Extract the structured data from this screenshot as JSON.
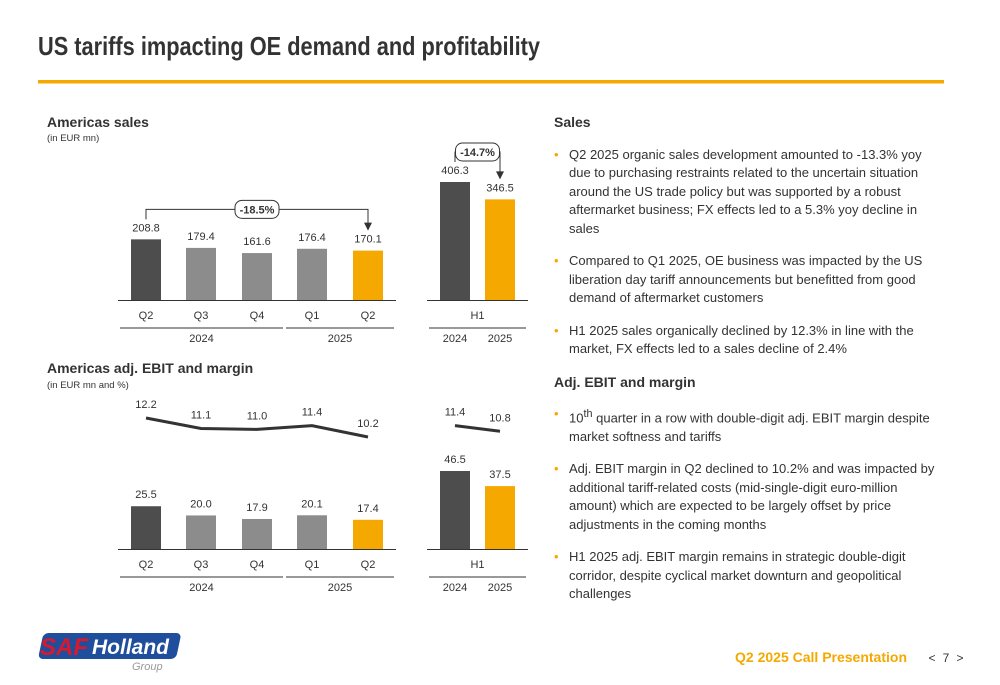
{
  "title": "US tariffs impacting OE demand and profitability",
  "chart_data": [
    {
      "type": "bar",
      "title": "Americas sales",
      "subtitle": "(in EUR mn)",
      "annotation": "-18.5%",
      "groups": [
        {
          "label": "2024",
          "categories": [
            "Q2",
            "Q3",
            "Q4"
          ],
          "values": [
            208.8,
            179.4,
            161.6
          ],
          "colors": [
            "#4d4d4d",
            "#8c8c8c",
            "#8c8c8c"
          ]
        },
        {
          "label": "2025",
          "categories": [
            "Q1",
            "Q2"
          ],
          "values": [
            176.4,
            170.1
          ],
          "colors": [
            "#8c8c8c",
            "#f5a800"
          ]
        }
      ]
    },
    {
      "type": "bar",
      "annotation": "-14.7%",
      "group_labels_first": true,
      "groups": [
        {
          "label": "H1",
          "categories": [
            "2024",
            "2025"
          ],
          "values": [
            406.3,
            346.5
          ],
          "colors": [
            "#4d4d4d",
            "#f5a800"
          ]
        }
      ]
    },
    {
      "type": "bar-line",
      "title": "Americas adj. EBIT and margin",
      "subtitle": "(in EUR mn and %)",
      "groups": [
        {
          "label": "2024",
          "categories": [
            "Q2",
            "Q3",
            "Q4"
          ],
          "values": [
            25.5,
            20.0,
            17.9
          ],
          "value_labels": [
            "25.5",
            "20.0",
            "17.9"
          ],
          "margins": [
            12.2,
            11.1,
            11.0
          ],
          "margin_labels": [
            "12.2",
            "11.1",
            "11.0"
          ],
          "colors": [
            "#4d4d4d",
            "#8c8c8c",
            "#8c8c8c"
          ]
        },
        {
          "label": "2025",
          "categories": [
            "Q1",
            "Q2"
          ],
          "values": [
            20.1,
            17.4
          ],
          "value_labels": [
            "20.1",
            "17.4"
          ],
          "margins": [
            11.4,
            10.2
          ],
          "margin_labels": [
            "11.4",
            "10.2"
          ],
          "colors": [
            "#8c8c8c",
            "#f5a800"
          ]
        }
      ]
    },
    {
      "type": "bar-line",
      "group_labels_first": true,
      "groups": [
        {
          "label": "H1",
          "categories": [
            "2024",
            "2025"
          ],
          "values": [
            46.5,
            37.5
          ],
          "value_labels": [
            "46.5",
            "37.5"
          ],
          "margins": [
            11.4,
            10.8
          ],
          "margin_labels": [
            "11.4",
            "10.8"
          ],
          "colors": [
            "#4d4d4d",
            "#f5a800"
          ]
        }
      ]
    }
  ],
  "sections": [
    {
      "heading": "Sales",
      "bullets": [
        "Q2 2025 organic sales development amounted to -13.3% yoy due to purchasing restraints related to the uncertain situation around the US trade policy but was supported by a robust aftermarket business; FX effects led to a 5.3% yoy decline in sales",
        "Compared to Q1 2025, OE business was impacted by the US liberation day tariff announcements but benefitted from good demand of aftermarket customers",
        "H1 2025 sales organically declined by 12.3% in line with the market, FX effects led to a sales decline of 2.4%"
      ]
    },
    {
      "heading": "Adj. EBIT and margin",
      "bullets": [
        {
          "number": "10",
          "superscript": "th",
          "text": " quarter in a row with double-digit adj. EBIT margin despite market softness and tariffs"
        },
        "Adj. EBIT margin in Q2 declined to 10.2% and was impacted by additional tariff-related costs (mid-single-digit euro-million amount) which are expected to be largely offset by price adjustments in the coming months",
        "H1 2025 adj. EBIT margin remains in strategic double-digit corridor, despite cyclical market downturn and geopolitical challenges"
      ]
    }
  ],
  "logo": {
    "brand": "SAF",
    "name": "Holland",
    "group": "Group"
  },
  "footer": "Q2 2025 Call Presentation",
  "page_nav": {
    "prev": "<",
    "page": "7",
    "next": ">"
  }
}
